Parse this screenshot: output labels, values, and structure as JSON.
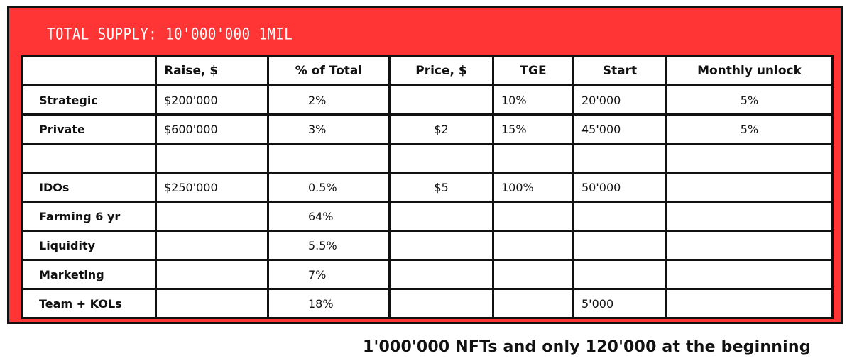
{
  "supply_label": "TOTAL SUPPLY: 10'000'000 1MIL",
  "columns": [
    "",
    "Raise, $",
    "% of Total",
    "Price, $",
    "TGE",
    "Start",
    "Monthly unlock"
  ],
  "rows": [
    {
      "label": "Strategic",
      "raise": "$200'000",
      "pct": "2%",
      "price": "",
      "tge": "10%",
      "start": "20'000",
      "monthly": "5%"
    },
    {
      "label": "Private",
      "raise": "$600'000",
      "pct": "3%",
      "price": "$2",
      "tge": "15%",
      "start": "45'000",
      "monthly": "5%"
    },
    {
      "label": "",
      "raise": "",
      "pct": "",
      "price": "",
      "tge": "",
      "start": "",
      "monthly": ""
    },
    {
      "label": "IDOs",
      "raise": "$250'000",
      "pct": "0.5%",
      "price": "$5",
      "tge": "100%",
      "start": "50'000",
      "monthly": ""
    },
    {
      "label": "Farming 6 yr",
      "raise": "",
      "pct": "64%",
      "price": "",
      "tge": "",
      "start": "",
      "monthly": ""
    },
    {
      "label": "Liquidity",
      "raise": "",
      "pct": "5.5%",
      "price": "",
      "tge": "",
      "start": "",
      "monthly": ""
    },
    {
      "label": "Marketing",
      "raise": "",
      "pct": "7%",
      "price": "",
      "tge": "",
      "start": "",
      "monthly": ""
    },
    {
      "label": "Team + KOLs",
      "raise": "",
      "pct": "18%",
      "price": "",
      "tge": "",
      "start": "5'000",
      "monthly": ""
    }
  ],
  "footer": "1'000'000 NFTs and only 120'000 at the beginning",
  "colors": {
    "panel": "#ff3535",
    "border": "#111111",
    "supply_text": "#ffffff"
  }
}
